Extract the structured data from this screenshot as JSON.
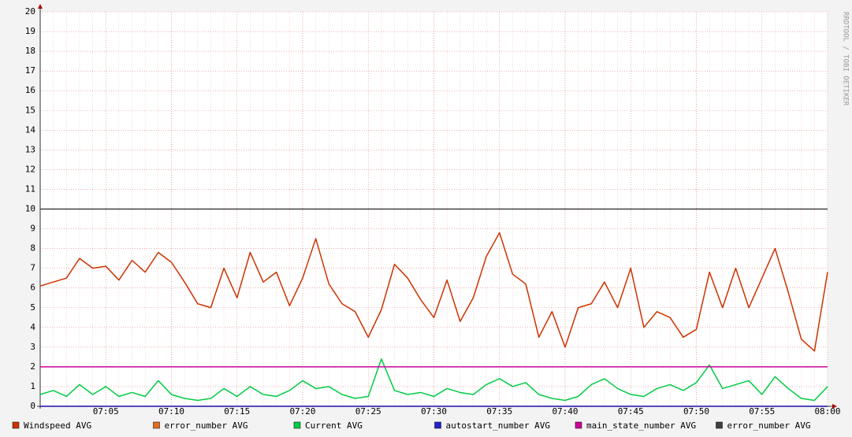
{
  "chart_data": {
    "type": "line",
    "watermark": "RRDTOOL / TOBI OETIKER",
    "x": [
      "07:00",
      "07:01",
      "07:02",
      "07:03",
      "07:04",
      "07:05",
      "07:06",
      "07:07",
      "07:08",
      "07:09",
      "07:10",
      "07:11",
      "07:12",
      "07:13",
      "07:14",
      "07:15",
      "07:16",
      "07:17",
      "07:18",
      "07:19",
      "07:20",
      "07:21",
      "07:22",
      "07:23",
      "07:24",
      "07:25",
      "07:26",
      "07:27",
      "07:28",
      "07:29",
      "07:30",
      "07:31",
      "07:32",
      "07:33",
      "07:34",
      "07:35",
      "07:36",
      "07:37",
      "07:38",
      "07:39",
      "07:40",
      "07:41",
      "07:42",
      "07:43",
      "07:44",
      "07:45",
      "07:46",
      "07:47",
      "07:48",
      "07:49",
      "07:50",
      "07:51",
      "07:52",
      "07:53",
      "07:54",
      "07:55",
      "07:56",
      "07:57",
      "07:58",
      "07:59",
      "08:00"
    ],
    "xlim": [
      "07:00",
      "08:00"
    ],
    "xticks": [
      "07:05",
      "07:10",
      "07:15",
      "07:20",
      "07:25",
      "07:30",
      "07:35",
      "07:40",
      "07:45",
      "07:50",
      "07:55",
      "08:00"
    ],
    "ylim": [
      0,
      20
    ],
    "yticks": [
      0,
      1,
      2,
      3,
      4,
      5,
      6,
      7,
      8,
      9,
      10,
      11,
      12,
      13,
      14,
      15,
      16,
      17,
      18,
      19,
      20
    ],
    "grid": true,
    "legend": "bottom",
    "series": [
      {
        "name": "Windspeed AVG",
        "color": "#cc3300",
        "values": [
          6.1,
          6.3,
          6.5,
          7.5,
          7.0,
          7.1,
          6.4,
          7.4,
          6.8,
          7.8,
          7.3,
          6.3,
          5.2,
          5.0,
          7.0,
          5.5,
          7.8,
          6.3,
          6.8,
          5.1,
          6.5,
          8.5,
          6.2,
          5.2,
          4.8,
          3.5,
          4.9,
          7.2,
          6.5,
          5.4,
          4.5,
          6.4,
          4.3,
          5.5,
          7.6,
          8.8,
          6.7,
          6.2,
          3.5,
          4.8,
          3.0,
          5.0,
          5.2,
          6.3,
          5.0,
          7.0,
          4.0,
          4.8,
          4.5,
          3.5,
          3.9,
          6.8,
          5.0,
          7.0,
          5.0,
          6.5,
          8.0,
          5.8,
          3.4,
          2.8,
          6.8
        ]
      },
      {
        "name": "error_number AVG",
        "color": "#e07020",
        "values": [
          0,
          0,
          0,
          0,
          0,
          0,
          0,
          0,
          0,
          0,
          0,
          0,
          0,
          0,
          0,
          0,
          0,
          0,
          0,
          0,
          0,
          0,
          0,
          0,
          0,
          0,
          0,
          0,
          0,
          0,
          0,
          0,
          0,
          0,
          0,
          0,
          0,
          0,
          0,
          0,
          0,
          0,
          0,
          0,
          0,
          0,
          0,
          0,
          0,
          0,
          0,
          0,
          0,
          0,
          0,
          0,
          0,
          0,
          0,
          0,
          0
        ]
      },
      {
        "name": "Current AVG",
        "color": "#00cc44",
        "values": [
          0.6,
          0.8,
          0.5,
          1.1,
          0.6,
          1.0,
          0.5,
          0.7,
          0.5,
          1.3,
          0.6,
          0.4,
          0.3,
          0.4,
          0.9,
          0.5,
          1.0,
          0.6,
          0.5,
          0.8,
          1.3,
          0.9,
          1.0,
          0.6,
          0.4,
          0.5,
          2.4,
          0.8,
          0.6,
          0.7,
          0.5,
          0.9,
          0.7,
          0.6,
          1.1,
          1.4,
          1.0,
          1.2,
          0.6,
          0.4,
          0.3,
          0.5,
          1.1,
          1.4,
          0.9,
          0.6,
          0.5,
          0.9,
          1.1,
          0.8,
          1.2,
          2.1,
          0.9,
          1.1,
          1.3,
          0.6,
          1.5,
          0.9,
          0.4,
          0.3,
          1.0
        ]
      },
      {
        "name": "autostart_number AVG",
        "color": "#2222cc",
        "values": [
          0,
          0,
          0,
          0,
          0,
          0,
          0,
          0,
          0,
          0,
          0,
          0,
          0,
          0,
          0,
          0,
          0,
          0,
          0,
          0,
          0,
          0,
          0,
          0,
          0,
          0,
          0,
          0,
          0,
          0,
          0,
          0,
          0,
          0,
          0,
          0,
          0,
          0,
          0,
          0,
          0,
          0,
          0,
          0,
          0,
          0,
          0,
          0,
          0,
          0,
          0,
          0,
          0,
          0,
          0,
          0,
          0,
          0,
          0,
          0,
          0
        ]
      },
      {
        "name": "main_state_number AVG",
        "color": "#cc0099",
        "values": [
          2,
          2,
          2,
          2,
          2,
          2,
          2,
          2,
          2,
          2,
          2,
          2,
          2,
          2,
          2,
          2,
          2,
          2,
          2,
          2,
          2,
          2,
          2,
          2,
          2,
          2,
          2,
          2,
          2,
          2,
          2,
          2,
          2,
          2,
          2,
          2,
          2,
          2,
          2,
          2,
          2,
          2,
          2,
          2,
          2,
          2,
          2,
          2,
          2,
          2,
          2,
          2,
          2,
          2,
          2,
          2,
          2,
          2,
          2,
          2,
          2
        ]
      },
      {
        "name": "error_number AVG",
        "color": "#404040",
        "values": [
          10,
          10,
          10,
          10,
          10,
          10,
          10,
          10,
          10,
          10,
          10,
          10,
          10,
          10,
          10,
          10,
          10,
          10,
          10,
          10,
          10,
          10,
          10,
          10,
          10,
          10,
          10,
          10,
          10,
          10,
          10,
          10,
          10,
          10,
          10,
          10,
          10,
          10,
          10,
          10,
          10,
          10,
          10,
          10,
          10,
          10,
          10,
          10,
          10,
          10,
          10,
          10,
          10,
          10,
          10,
          10,
          10,
          10,
          10,
          10,
          10
        ]
      }
    ]
  }
}
